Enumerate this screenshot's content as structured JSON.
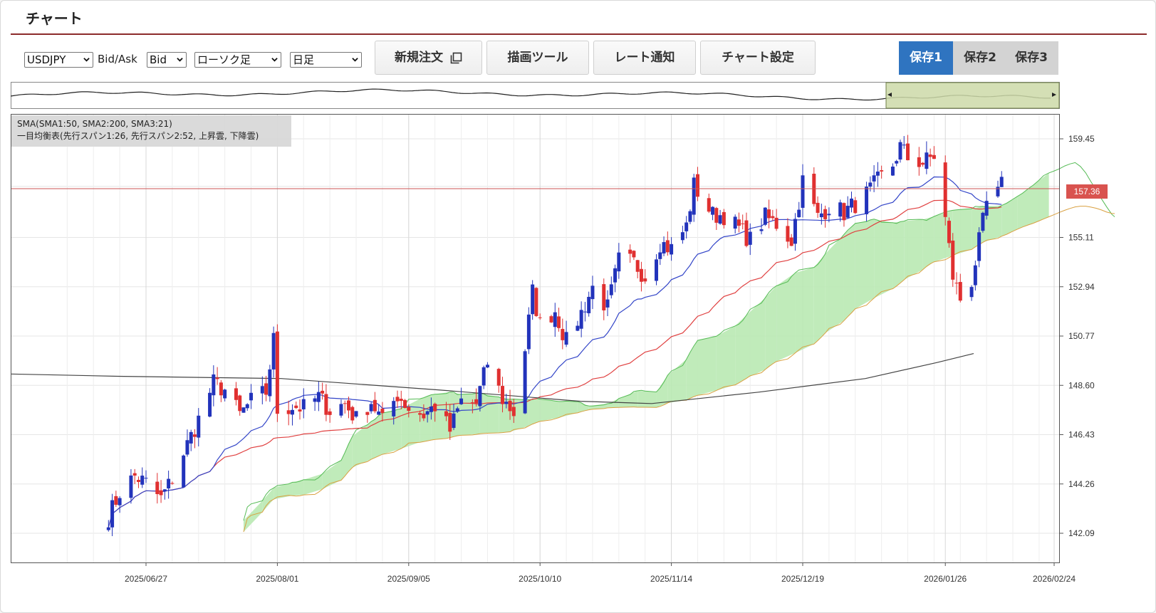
{
  "header": {
    "title": "チャート"
  },
  "toolbar": {
    "symbol": "USDJPY",
    "bidask_label": "Bid/Ask",
    "bidask_value": "Bid",
    "chart_type": "ローソク足",
    "period": "日足",
    "buttons": {
      "new_order": "新規注文",
      "draw_tool": "描画ツール",
      "rate_alert": "レート通知",
      "chart_settings": "チャート設定"
    },
    "saves": [
      "保存1",
      "保存2",
      "保存3"
    ],
    "active_save": "保存1"
  },
  "indicators": {
    "sma": "SMA(SMA1:50, SMA2:200, SMA3:21)",
    "ichimoku": "一目均衡表(先行スパン1:26, 先行スパン2:52, 上昇雲, 下降雲)"
  },
  "colors": {
    "up": "#2233bb",
    "down": "#e03030",
    "sma21": "#3345c8",
    "sma50": "#e04040",
    "sma200": "#444444",
    "cloud_up": "#b9e9b3",
    "cloud_down": "#f8d2a8",
    "accent": "#2f74c0",
    "current_price": "#d9534f"
  },
  "chart_data": {
    "type": "candlestick",
    "symbol": "USDJPY",
    "timeframe": "日足",
    "current_price": "157.36",
    "y_ticks": [
      "159.45",
      "157.36",
      "155.11",
      "152.94",
      "150.77",
      "148.60",
      "146.43",
      "144.26",
      "142.09"
    ],
    "x_ticks": [
      "2025/06/27",
      "2025/08/01",
      "2025/09/05",
      "2025/10/10",
      "2025/11/14",
      "2025/12/19",
      "2026/01/26",
      "2026/02/24"
    ],
    "ylim": [
      141.0,
      160.5
    ],
    "grid": true,
    "series": [
      {
        "name": "SMA1:50",
        "color": "#e04040"
      },
      {
        "name": "SMA2:200",
        "color": "#444444"
      },
      {
        "name": "SMA3:21",
        "color": "#3345c8"
      }
    ],
    "close_path": [
      [
        "2025/06/17",
        142.8
      ],
      [
        "2025/06/20",
        143.9
      ],
      [
        "2025/06/24",
        144.6
      ],
      [
        "2025/06/27",
        144.3
      ],
      [
        "2025/07/01",
        143.6
      ],
      [
        "2025/07/04",
        144.5
      ],
      [
        "2025/07/08",
        146.0
      ],
      [
        "2025/07/11",
        147.1
      ],
      [
        "2025/07/15",
        148.7
      ],
      [
        "2025/07/18",
        148.4
      ],
      [
        "2025/07/22",
        147.3
      ],
      [
        "2025/07/25",
        147.9
      ],
      [
        "2025/07/29",
        148.3
      ],
      [
        "2025/07/31",
        150.6
      ],
      [
        "2025/08/01",
        147.5
      ],
      [
        "2025/08/05",
        147.7
      ],
      [
        "2025/08/08",
        147.6
      ],
      [
        "2025/08/12",
        148.1
      ],
      [
        "2025/08/15",
        147.5
      ],
      [
        "2025/08/19",
        147.8
      ],
      [
        "2025/08/22",
        147.1
      ],
      [
        "2025/08/26",
        147.9
      ],
      [
        "2025/08/29",
        147.0
      ],
      [
        "2025/09/02",
        148.2
      ],
      [
        "2025/09/05",
        147.6
      ],
      [
        "2025/09/09",
        147.3
      ],
      [
        "2025/09/12",
        147.7
      ],
      [
        "2025/09/16",
        146.6
      ],
      [
        "2025/09/19",
        147.9
      ],
      [
        "2025/09/23",
        147.8
      ],
      [
        "2025/09/26",
        149.6
      ],
      [
        "2025/09/30",
        148.0
      ],
      [
        "2025/10/03",
        147.4
      ],
      [
        "2025/10/06",
        150.2
      ],
      [
        "2025/10/08",
        152.7
      ],
      [
        "2025/10/10",
        151.3
      ],
      [
        "2025/10/14",
        151.9
      ],
      [
        "2025/10/17",
        150.5
      ],
      [
        "2025/10/21",
        151.8
      ],
      [
        "2025/10/24",
        152.9
      ],
      [
        "2025/10/28",
        152.0
      ],
      [
        "2025/10/31",
        154.1
      ],
      [
        "2025/11/04",
        154.0
      ],
      [
        "2025/11/07",
        153.4
      ],
      [
        "2025/11/11",
        154.9
      ],
      [
        "2025/11/14",
        154.6
      ],
      [
        "2025/11/18",
        155.6
      ],
      [
        "2025/11/20",
        157.4
      ],
      [
        "2025/11/25",
        156.1
      ],
      [
        "2025/11/28",
        156.1
      ],
      [
        "2025/12/02",
        155.5
      ],
      [
        "2025/12/05",
        155.0
      ],
      [
        "2025/12/09",
        156.0
      ],
      [
        "2025/12/12",
        155.7
      ],
      [
        "2025/12/16",
        155.0
      ],
      [
        "2025/12/19",
        157.6
      ],
      [
        "2025/12/23",
        156.0
      ],
      [
        "2025/12/26",
        156.5
      ],
      [
        "2025/12/30",
        156.2
      ],
      [
        "2026/01/05",
        157.0
      ],
      [
        "2026/01/08",
        157.6
      ],
      [
        "2026/01/12",
        158.3
      ],
      [
        "2026/01/14",
        159.1
      ],
      [
        "2026/01/16",
        158.6
      ],
      [
        "2026/01/20",
        158.4
      ],
      [
        "2026/01/23",
        158.7
      ],
      [
        "2026/01/26",
        155.9
      ],
      [
        "2026/01/28",
        153.4
      ],
      [
        "2026/01/30",
        152.4
      ],
      [
        "2026/02/02",
        153.2
      ],
      [
        "2026/02/04",
        154.9
      ],
      [
        "2026/02/06",
        156.6
      ],
      [
        "2026/02/09",
        157.0
      ],
      [
        "2026/02/10",
        157.4
      ]
    ]
  }
}
